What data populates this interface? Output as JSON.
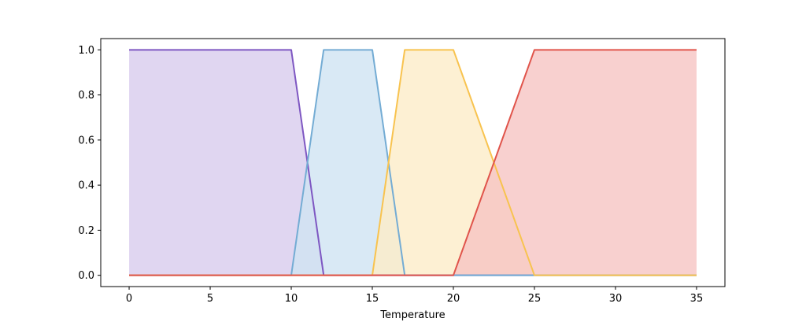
{
  "chart_data": {
    "type": "area",
    "xlabel": "Temperature",
    "ylabel": "",
    "xlim": [
      -1.75,
      36.75
    ],
    "ylim": [
      -0.05,
      1.05
    ],
    "xticks": [
      0,
      5,
      10,
      15,
      20,
      25,
      30,
      35
    ],
    "yticks": [
      0.0,
      0.2,
      0.4,
      0.6,
      0.8,
      1.0
    ],
    "xtick_labels": [
      "0",
      "5",
      "10",
      "15",
      "20",
      "25",
      "30",
      "35"
    ],
    "ytick_labels": [
      "0.0",
      "0.2",
      "0.4",
      "0.6",
      "0.8",
      "1.0"
    ],
    "grid": false,
    "series": [
      {
        "x": [
          0,
          10,
          12,
          35
        ],
        "values": [
          1,
          1,
          0,
          0
        ],
        "line_color": "#7e57c2",
        "fill_color": "#d8cced"
      },
      {
        "x": [
          0,
          10,
          12,
          15,
          17,
          35
        ],
        "values": [
          0,
          0,
          1,
          1,
          0,
          0
        ],
        "line_color": "#74acd4",
        "fill_color": "#d0e3f2"
      },
      {
        "x": [
          0,
          15,
          17,
          20,
          25,
          35
        ],
        "values": [
          0,
          0,
          1,
          1,
          0,
          0
        ],
        "line_color": "#f8c34f",
        "fill_color": "#fdecc8"
      },
      {
        "x": [
          0,
          20,
          25,
          35
        ],
        "values": [
          0,
          0,
          1,
          1
        ],
        "line_color": "#e0544b",
        "fill_color": "#f6c4c3"
      }
    ]
  }
}
